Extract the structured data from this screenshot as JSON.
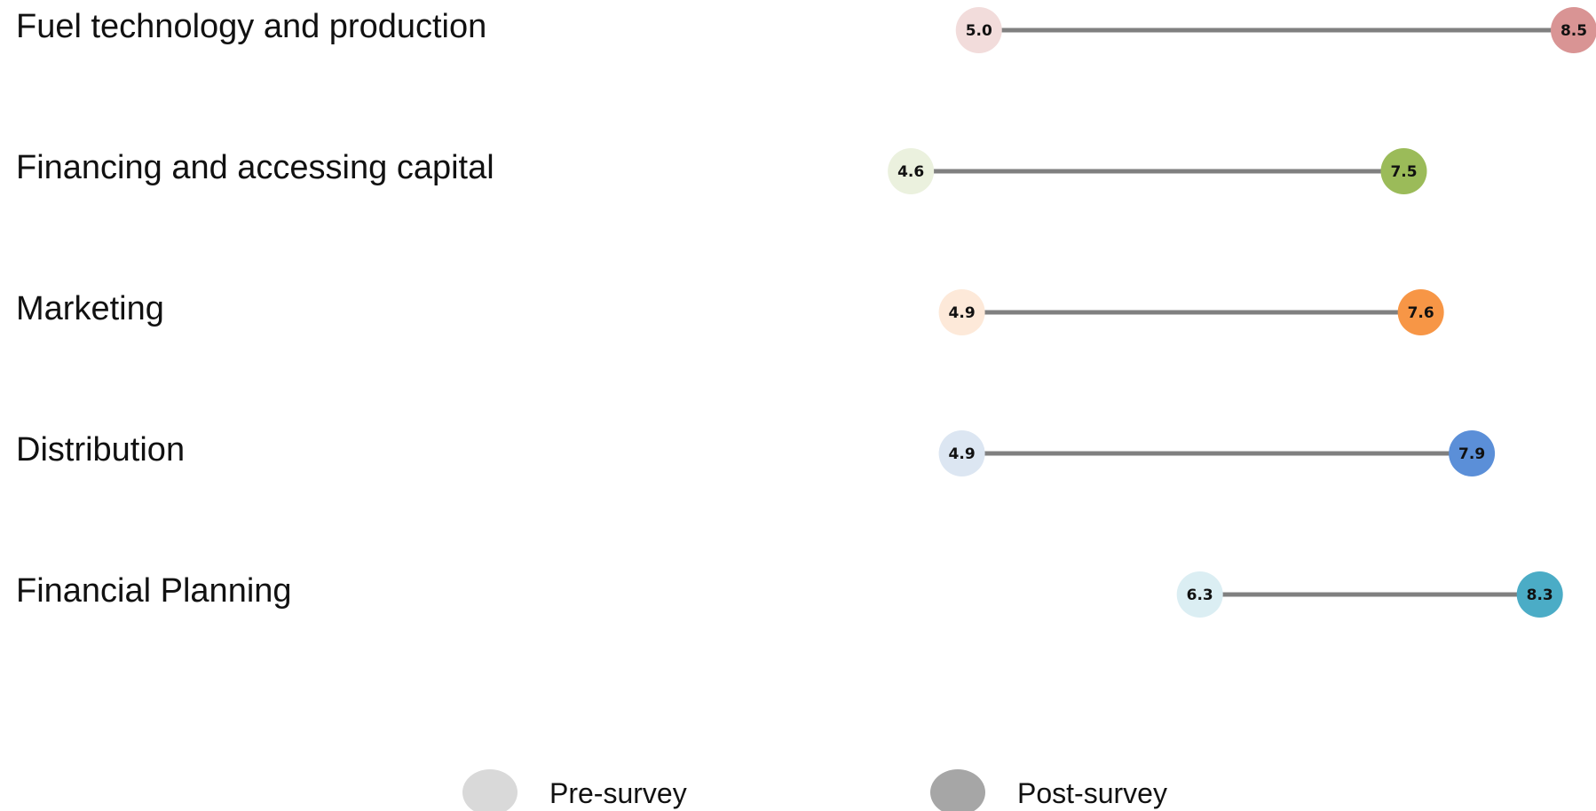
{
  "chart_data": {
    "type": "dumbbell",
    "title": "",
    "xlabel": "",
    "ylabel": "",
    "xlim": [
      0,
      10
    ],
    "grid": false,
    "legend_placement": "bottom-center",
    "categories": [
      "Fuel technology and production",
      "Financing and accessing capital",
      "Marketing",
      "Distribution",
      "Financial Planning"
    ],
    "series": [
      {
        "name": "Pre-survey",
        "values": [
          5.0,
          4.6,
          4.9,
          4.9,
          6.3
        ],
        "labels": [
          "5.0",
          "4.6",
          "4.9",
          "4.9",
          "6.3"
        ]
      },
      {
        "name": "Post-survey",
        "values": [
          8.5,
          7.5,
          7.6,
          7.9,
          8.3
        ],
        "labels": [
          "8.5",
          "7.5",
          "7.6",
          "7.9",
          "8.3"
        ]
      }
    ],
    "colors": {
      "post": [
        "#d99494",
        "#9bbb59",
        "#f79646",
        "#5b8fd8",
        "#4bacc6"
      ],
      "pre": [
        "#f2dcdb",
        "#ebf1de",
        "#fde9d9",
        "#dce6f2",
        "#dbeef3"
      ],
      "connector": "#808080",
      "legend_pre": "#d9d9d9",
      "legend_post": "#a6a6a6"
    }
  }
}
